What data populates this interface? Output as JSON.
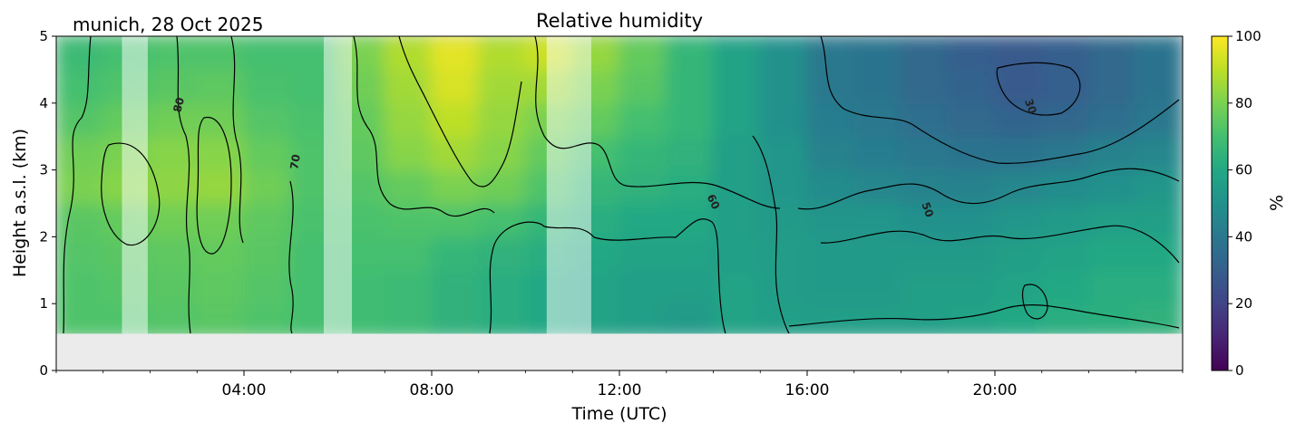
{
  "chart_data": {
    "type": "heatmap",
    "title": "Relative humidity",
    "site_label": "munich, 28 Oct 2025",
    "xlabel": "Time (UTC)",
    "ylabel": "Height a.s.l. (km)",
    "x_ticks": [
      "04:00",
      "08:00",
      "12:00",
      "16:00",
      "20:00"
    ],
    "x_tick_hours": [
      4,
      8,
      12,
      16,
      20
    ],
    "xlim_hours": [
      0,
      24
    ],
    "y_ticks": [
      "0",
      "1",
      "2",
      "3",
      "4",
      "5"
    ],
    "ylim": [
      0,
      5
    ],
    "data_bottom_km": 0.55,
    "colorbar": {
      "label": "%",
      "ticks": [
        "0",
        "20",
        "40",
        "60",
        "80",
        "100"
      ],
      "range": [
        0,
        100
      ],
      "colormap": "viridis"
    },
    "contour_labels": [
      "80",
      "70",
      "60",
      "50",
      "30"
    ],
    "masked_periods_hours": [
      [
        1.4,
        1.95
      ],
      [
        5.7,
        6.3
      ],
      [
        10.45,
        11.4
      ]
    ],
    "time_hours": [
      0.5,
      1.5,
      2.5,
      3.5,
      4.5,
      5.5,
      6.5,
      7.5,
      8.5,
      9.5,
      10.5,
      11.5,
      12.5,
      13.5,
      14.5,
      15.5,
      16.5,
      17.5,
      18.5,
      19.5,
      20.5,
      21.5,
      22.5,
      23.5
    ],
    "height_km": [
      0.75,
      1.25,
      1.75,
      2.25,
      2.75,
      3.25,
      3.75,
      4.25,
      4.75
    ],
    "rh_percent": [
      [
        72,
        72,
        73,
        74,
        80,
        78,
        73,
        70,
        68
      ],
      [
        72,
        73,
        74,
        76,
        82,
        80,
        76,
        72,
        70
      ],
      [
        73,
        74,
        75,
        78,
        83,
        82,
        78,
        74,
        72
      ],
      [
        74,
        75,
        76,
        78,
        84,
        82,
        78,
        75,
        72
      ],
      [
        72,
        73,
        74,
        75,
        78,
        76,
        73,
        71,
        70
      ],
      [
        70,
        70,
        70,
        71,
        72,
        72,
        71,
        70,
        70
      ],
      [
        69,
        69,
        70,
        71,
        73,
        75,
        76,
        78,
        80
      ],
      [
        68,
        68,
        70,
        72,
        76,
        82,
        84,
        86,
        88
      ],
      [
        64,
        64,
        66,
        72,
        80,
        86,
        90,
        94,
        96
      ],
      [
        62,
        62,
        64,
        70,
        78,
        82,
        84,
        86,
        88
      ],
      [
        60,
        60,
        62,
        66,
        72,
        76,
        80,
        86,
        92
      ],
      [
        58,
        58,
        60,
        62,
        66,
        70,
        76,
        80,
        84
      ],
      [
        56,
        56,
        58,
        60,
        64,
        66,
        70,
        74,
        76
      ],
      [
        54,
        56,
        58,
        60,
        62,
        64,
        66,
        66,
        66
      ],
      [
        58,
        58,
        56,
        56,
        56,
        56,
        58,
        58,
        58
      ],
      [
        56,
        55,
        55,
        54,
        52,
        52,
        50,
        50,
        50
      ],
      [
        56,
        54,
        54,
        52,
        48,
        44,
        42,
        40,
        40
      ],
      [
        56,
        54,
        54,
        52,
        46,
        42,
        40,
        38,
        38
      ],
      [
        56,
        56,
        54,
        50,
        44,
        40,
        36,
        34,
        34
      ],
      [
        58,
        56,
        54,
        50,
        44,
        38,
        34,
        32,
        30
      ],
      [
        60,
        58,
        56,
        52,
        46,
        38,
        32,
        28,
        28
      ],
      [
        62,
        60,
        58,
        54,
        48,
        40,
        33,
        30,
        30
      ],
      [
        63,
        62,
        60,
        56,
        50,
        44,
        36,
        34,
        34
      ],
      [
        64,
        62,
        60,
        56,
        52,
        46,
        40,
        38,
        38
      ]
    ]
  }
}
